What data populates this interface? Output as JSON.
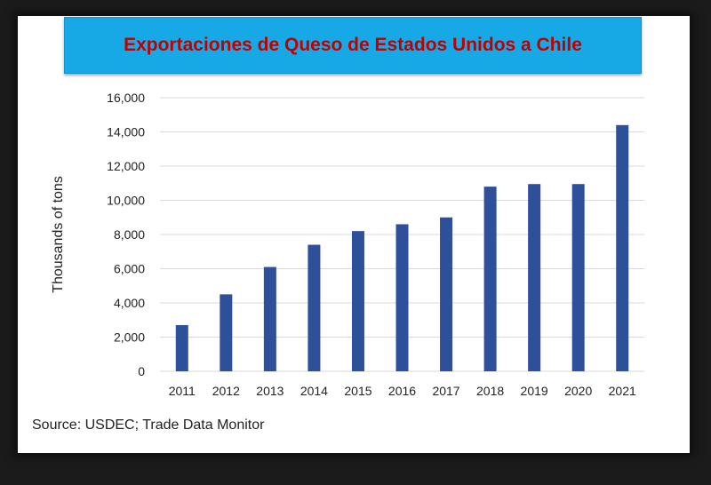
{
  "colors": {
    "bar": "#2e4f9a",
    "grid": "#d9d9d9",
    "banner": "#17a9e6",
    "title_text": "#c00000"
  },
  "source_text": "Source: USDEC; Trade Data Monitor",
  "chart_data": {
    "type": "bar",
    "title": "Exportaciones de Queso de Estados Unidos a Chile",
    "xlabel": "",
    "ylabel": "Thousands of tons",
    "categories": [
      "2011",
      "2012",
      "2013",
      "2014",
      "2015",
      "2016",
      "2017",
      "2018",
      "2019",
      "2020",
      "2021"
    ],
    "values": [
      2700,
      4500,
      6100,
      7400,
      8200,
      8600,
      9000,
      10800,
      10950,
      10950,
      14400
    ],
    "ylim": [
      0,
      16000
    ],
    "yticks": [
      0,
      2000,
      4000,
      6000,
      8000,
      10000,
      12000,
      14000,
      16000
    ],
    "ytick_labels": [
      "0",
      "2,000",
      "4,000",
      "6,000",
      "8,000",
      "10,000",
      "12,000",
      "14,000",
      "16,000"
    ],
    "grid": true,
    "legend": "none"
  }
}
